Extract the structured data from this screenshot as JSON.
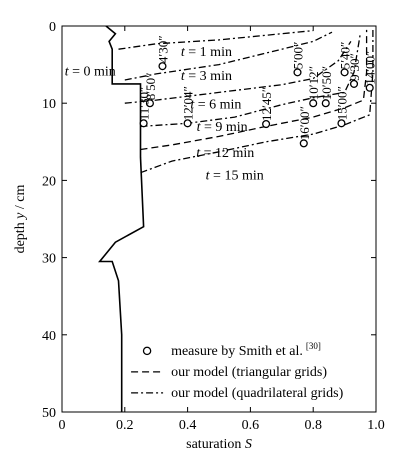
{
  "chart_data": {
    "type": "line",
    "xlabel": "saturation S",
    "ylabel": "depth y / cm",
    "xlim": [
      0,
      1.0
    ],
    "ylim": [
      0,
      50
    ],
    "y_inverted": true,
    "x_ticks": [
      "0",
      "0.2",
      "0.4",
      "0.6",
      "0.8",
      "1.0"
    ],
    "y_ticks": [
      "0",
      "10",
      "20",
      "30",
      "40",
      "50"
    ],
    "grid": false,
    "legend_position": "bottom-right",
    "legend": [
      {
        "label": "measure by Smith et al.",
        "superscript": "[30]",
        "style": "circle"
      },
      {
        "label": "our model (triangular grids)",
        "style": "dashed"
      },
      {
        "label": "our model (quadrilateral grids)",
        "style": "dashdot"
      }
    ],
    "initial_profile": {
      "label": "t = 0 min",
      "points": [
        [
          0.14,
          0.0
        ],
        [
          0.17,
          1.0
        ],
        [
          0.15,
          2.0
        ],
        [
          0.16,
          3.0
        ],
        [
          0.16,
          7.5
        ],
        [
          0.25,
          7.5
        ],
        [
          0.25,
          17.0
        ],
        [
          0.26,
          26.0
        ],
        [
          0.17,
          28.0
        ],
        [
          0.12,
          30.5
        ],
        [
          0.16,
          30.5
        ],
        [
          0.18,
          33.0
        ],
        [
          0.19,
          40.0
        ],
        [
          0.19,
          50.0
        ]
      ]
    },
    "series": [
      {
        "time_label": "t = 1 min",
        "style": "dashdot",
        "points": [
          [
            0.18,
            3.0
          ],
          [
            0.3,
            2.3
          ],
          [
            0.5,
            1.8
          ],
          [
            0.7,
            1.0
          ],
          [
            0.8,
            0.6
          ]
        ]
      },
      {
        "time_label": "t = 3 min",
        "style": "dashdot",
        "points": [
          [
            0.2,
            7.0
          ],
          [
            0.3,
            6.2
          ],
          [
            0.5,
            5.0
          ],
          [
            0.7,
            3.0
          ],
          [
            0.8,
            2.0
          ],
          [
            0.86,
            0.8
          ]
        ]
      },
      {
        "time_label": "t = 6 min",
        "style": "dashdot",
        "points": [
          [
            0.2,
            10.0
          ],
          [
            0.3,
            9.6
          ],
          [
            0.5,
            8.6
          ],
          [
            0.7,
            7.6
          ],
          [
            0.8,
            6.8
          ],
          [
            0.88,
            4.5
          ],
          [
            0.92,
            2.0
          ]
        ]
      },
      {
        "time_label": "t = 9 min",
        "style": "dashdot",
        "points": [
          [
            0.25,
            13.0
          ],
          [
            0.4,
            12.6
          ],
          [
            0.55,
            11.8
          ],
          [
            0.7,
            10.2
          ],
          [
            0.8,
            9.3
          ],
          [
            0.9,
            8.6
          ],
          [
            0.93,
            6.0
          ],
          [
            0.95,
            1.0
          ]
        ]
      },
      {
        "time_label": "t = 12 min",
        "style": "dashed",
        "points": [
          [
            0.25,
            16.0
          ],
          [
            0.35,
            15.4
          ],
          [
            0.5,
            14.3
          ],
          [
            0.65,
            13.0
          ],
          [
            0.8,
            11.8
          ],
          [
            0.9,
            10.6
          ],
          [
            0.96,
            9.6
          ],
          [
            0.97,
            6.0
          ],
          [
            0.97,
            0.5
          ]
        ]
      },
      {
        "time_label": "t = 15 min",
        "style": "dashdot",
        "points": [
          [
            0.25,
            19.0
          ],
          [
            0.35,
            17.5
          ],
          [
            0.5,
            16.3
          ],
          [
            0.65,
            15.0
          ],
          [
            0.8,
            14.0
          ],
          [
            0.9,
            12.8
          ],
          [
            0.98,
            11.5
          ],
          [
            0.99,
            6.0
          ],
          [
            0.99,
            0.3
          ]
        ]
      }
    ],
    "measurements": [
      {
        "label": "4′30″",
        "s": 0.32,
        "y": 5.2
      },
      {
        "label": "8′50″",
        "s": 0.28,
        "y": 10.0
      },
      {
        "label": "11′30″",
        "s": 0.26,
        "y": 12.6
      },
      {
        "label": "12′04″",
        "s": 0.4,
        "y": 12.6
      },
      {
        "label": "12′45″",
        "s": 0.65,
        "y": 12.7
      },
      {
        "label": "5′00″",
        "s": 0.75,
        "y": 6.0
      },
      {
        "label": "10′12″",
        "s": 0.8,
        "y": 10.0
      },
      {
        "label": "10′50″",
        "s": 0.84,
        "y": 10.0
      },
      {
        "label": "16′00″",
        "s": 0.77,
        "y": 15.2
      },
      {
        "label": "5′40″",
        "s": 0.9,
        "y": 6.0
      },
      {
        "label": "9′30″",
        "s": 0.93,
        "y": 7.5
      },
      {
        "label": "15′00″",
        "s": 0.89,
        "y": 12.6
      },
      {
        "label": "14′00″",
        "s": 0.98,
        "y": 8.0
      }
    ]
  }
}
